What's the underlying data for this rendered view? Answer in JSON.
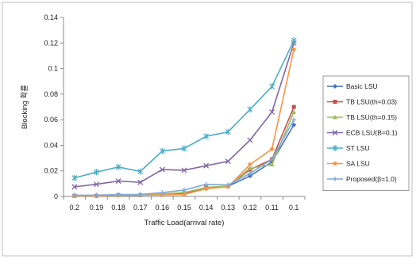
{
  "chart_data": {
    "type": "line",
    "title": "",
    "xlabel": "Traffic Load(arrival rate)",
    "ylabel": "Blocking 확률",
    "categories": [
      "0.2",
      "0.19",
      "0.18",
      "0.17",
      "0.16",
      "0.15",
      "0.14",
      "0.13",
      "0.12",
      "0.11",
      "0.1"
    ],
    "yticks": [
      "0",
      "0.02",
      "0.04",
      "0.06",
      "0.08",
      "0.1",
      "0.12",
      "0.14"
    ],
    "ylim": [
      0,
      0.14
    ],
    "grid": false,
    "legend_position": "right",
    "series": [
      {
        "name": "Basic LSU",
        "color": "#4472c4",
        "marker": "diamond",
        "values": [
          0.0005,
          0.0005,
          0.0008,
          0.001,
          0.0015,
          0.002,
          0.006,
          0.008,
          0.016,
          0.027,
          0.056
        ]
      },
      {
        "name": "TB LSU(th=0.03)",
        "color": "#c0504d",
        "marker": "square",
        "values": [
          0.0005,
          0.0005,
          0.001,
          0.001,
          0.0015,
          0.0025,
          0.007,
          0.008,
          0.021,
          0.029,
          0.07
        ]
      },
      {
        "name": "TB LSU(th=0.15)",
        "color": "#9bbb59",
        "marker": "triangle",
        "values": [
          0.0005,
          0.0005,
          0.001,
          0.0012,
          0.002,
          0.003,
          0.007,
          0.008,
          0.022,
          0.025,
          0.066
        ]
      },
      {
        "name": "ECB LSU(B=0.1)",
        "color": "#8064a2",
        "marker": "x",
        "values": [
          0.0075,
          0.0095,
          0.012,
          0.011,
          0.021,
          0.0205,
          0.024,
          0.0275,
          0.044,
          0.066,
          0.12
        ]
      },
      {
        "name": "ST LSU",
        "color": "#4bacc6",
        "marker": "star",
        "values": [
          0.0145,
          0.019,
          0.023,
          0.0195,
          0.0355,
          0.0375,
          0.047,
          0.0505,
          0.068,
          0.086,
          0.122
        ]
      },
      {
        "name": "SA LSU",
        "color": "#f79646",
        "marker": "circle",
        "values": [
          0.0005,
          0.0005,
          0.0008,
          0.001,
          0.0012,
          0.0015,
          0.006,
          0.0075,
          0.025,
          0.037,
          0.115
        ]
      },
      {
        "name": "Proposed(β=1.0)",
        "color": "#7faad4",
        "marker": "plus",
        "values": [
          0.001,
          0.001,
          0.0015,
          0.0015,
          0.003,
          0.005,
          0.0095,
          0.009,
          0.018,
          0.029,
          0.06
        ]
      }
    ]
  }
}
